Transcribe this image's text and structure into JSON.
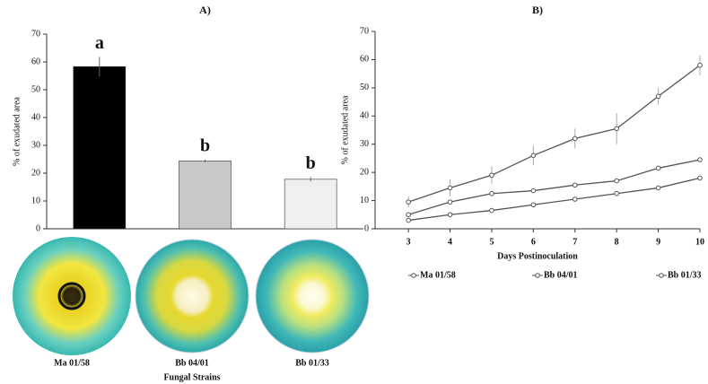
{
  "chart_data": [
    {
      "type": "bar",
      "title": "A)",
      "categories": [
        "Ma 01/58",
        "Bb 04/01",
        "Bb 01/33"
      ],
      "values": [
        58.3,
        24.4,
        17.8
      ],
      "errors": [
        3.5,
        0.5,
        0.8
      ],
      "colors": [
        "#000000",
        "#c9c8c9",
        "#efefef"
      ],
      "annotations": [
        "a",
        "b",
        "b"
      ],
      "xlabel": "Fungal Strains",
      "ylabel": "% of exudated area",
      "ylim": [
        0,
        70
      ],
      "yticks": [
        0,
        10,
        20,
        30,
        40,
        50,
        60,
        70
      ]
    },
    {
      "type": "line",
      "title": "B)",
      "x": [
        3,
        4,
        5,
        6,
        7,
        8,
        9,
        10
      ],
      "xlim": [
        2.2,
        10
      ],
      "series": [
        {
          "name": "Ma 01/58",
          "color": "#555555",
          "values": [
            9.5,
            14.5,
            19,
            26,
            32,
            35.5,
            47,
            58
          ],
          "errors": [
            2,
            3,
            3,
            3.5,
            3.5,
            5.5,
            3,
            3.5
          ]
        },
        {
          "name": "Bb 04/01",
          "color": "#555555",
          "values": [
            5,
            9.5,
            12.5,
            13.5,
            15.5,
            17,
            21.5,
            24.5
          ],
          "errors": [
            0.5,
            0.5,
            0.5,
            0.5,
            0.5,
            0.5,
            0.5,
            0.5
          ]
        },
        {
          "name": "Bb 01/33",
          "color": "#555555",
          "values": [
            3,
            5,
            6.5,
            8.5,
            10.5,
            12.5,
            14.5,
            18
          ],
          "errors": [
            0.3,
            0.3,
            0.3,
            0.3,
            0.3,
            0.3,
            0.3,
            0.5
          ]
        }
      ],
      "xlabel": "Days Postinoculation",
      "ylabel": "% of exudated area",
      "ylim": [
        0,
        70
      ],
      "yticks": [
        0,
        10,
        20,
        30,
        40,
        50,
        60,
        70
      ]
    }
  ]
}
